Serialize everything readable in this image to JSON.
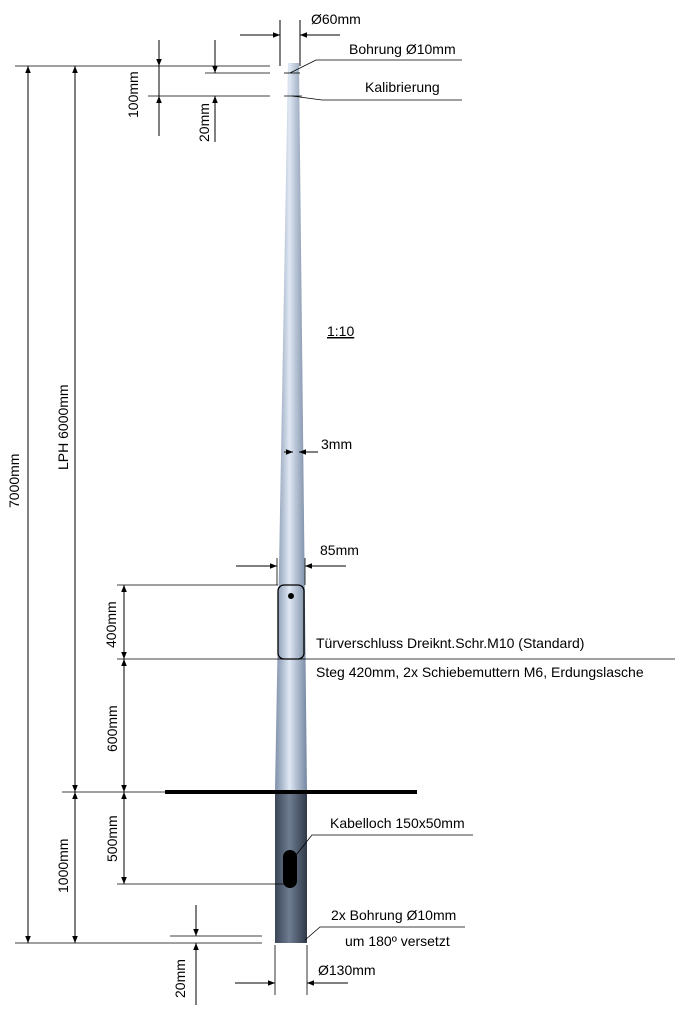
{
  "diagram": {
    "top_diameter": "Ø60mm",
    "top_hole": "Bohrung Ø10mm",
    "calibration": "Kalibrierung",
    "dim_100": "100mm",
    "dim_20_top": "20mm",
    "total_height": "7000mm",
    "lph": "LPH 6000mm",
    "scale": "1:10",
    "wall_thickness": "3mm",
    "door_width": "85mm",
    "door_height": "400mm",
    "door_lock": "Türverschluss Dreiknt.Schr.M10 (Standard)",
    "rail_note": "Steg 420mm, 2x Schiebemuttern M6, Erdungslasche",
    "door_base_height": "600mm",
    "cable_depth": "500mm",
    "embed_depth": "1000mm",
    "cable_hole": "Kabelloch 150x50mm",
    "bottom_holes": "2x Bohrung Ø10mm",
    "bottom_offset": "um 180º versetzt",
    "dim_20_bottom": "20mm",
    "bottom_diameter": "Ø130mm"
  },
  "colors": {
    "pole_light": "#d6e0ee",
    "pole_mid": "#9fb0c8",
    "pole_dark": "#6d7f99",
    "buried_light": "#5f6c80",
    "buried_dark": "#2e3846",
    "ground": "#000000"
  }
}
